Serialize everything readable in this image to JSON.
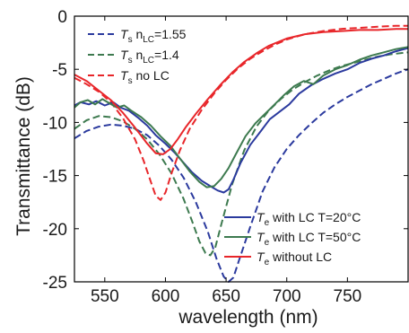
{
  "chart_data": {
    "type": "line",
    "xlabel": "wavelength (nm)",
    "ylabel": "Transmittance (dB)",
    "xlim": [
      525,
      800
    ],
    "ylim": [
      -25,
      0
    ],
    "xticks": [
      550,
      600,
      650,
      700,
      750
    ],
    "yticks": [
      0,
      -5,
      -10,
      -15,
      -20,
      -25
    ],
    "grid": false,
    "legend_placement": [
      "top-left",
      "bottom-right"
    ],
    "series": [
      {
        "name": "T_s n_LC=1.55",
        "legend_group": 0,
        "legend_main": "T",
        "legend_sub": "s",
        "legend_text": " n",
        "legend_text_sub": "LC",
        "legend_tail": "=1.55",
        "color": "#2b3a9e",
        "dash": true,
        "x": [
          525,
          535,
          545,
          555,
          565,
          575,
          585,
          595,
          605,
          615,
          625,
          635,
          642,
          648,
          652,
          656,
          660,
          670,
          680,
          690,
          700,
          710,
          720,
          730,
          740,
          750,
          760,
          770,
          780,
          790,
          800
        ],
        "y": [
          -11.5,
          -10.8,
          -10.4,
          -10.2,
          -10.3,
          -10.6,
          -11.2,
          -12.2,
          -13.5,
          -15.2,
          -17.5,
          -20.3,
          -22.8,
          -24.5,
          -25,
          -24.6,
          -23.2,
          -19.8,
          -16.5,
          -14.2,
          -12.5,
          -11.2,
          -10.1,
          -9.1,
          -8.3,
          -7.6,
          -7,
          -6.4,
          -5.9,
          -5.4,
          -5
        ]
      },
      {
        "name": "T_s n_LC=1.4",
        "legend_group": 0,
        "legend_main": "T",
        "legend_sub": "s",
        "legend_text": " n",
        "legend_text_sub": "LC",
        "legend_tail": "=1.4",
        "color": "#3d7a4f",
        "dash": true,
        "x": [
          525,
          535,
          545,
          555,
          565,
          575,
          585,
          595,
          605,
          615,
          622,
          628,
          633,
          637,
          641,
          646,
          655,
          665,
          675,
          685,
          695,
          705,
          715,
          725,
          735,
          745,
          755,
          765,
          775,
          785,
          800
        ],
        "y": [
          -10.6,
          -9.8,
          -9.4,
          -9.5,
          -9.9,
          -10.6,
          -11.6,
          -13,
          -14.8,
          -17.2,
          -19.3,
          -21.2,
          -22.3,
          -22.5,
          -21.8,
          -19.6,
          -15.8,
          -12.6,
          -10.4,
          -8.9,
          -7.8,
          -6.9,
          -6.2,
          -5.6,
          -5.1,
          -4.7,
          -4.4,
          -4.1,
          -3.8,
          -3.6,
          -3.4
        ]
      },
      {
        "name": "T_s no LC",
        "legend_group": 0,
        "legend_main": "T",
        "legend_sub": "s",
        "legend_text": " no LC",
        "legend_text_sub": "",
        "legend_tail": "",
        "color": "#e8262a",
        "dash": true,
        "x": [
          525,
          535,
          545,
          555,
          565,
          575,
          582,
          588,
          592,
          596,
          600,
          605,
          612,
          620,
          630,
          640,
          650,
          660,
          670,
          680,
          690,
          700,
          715,
          730,
          745,
          760,
          775,
          790,
          800
        ],
        "y": [
          -5.8,
          -6.4,
          -7.1,
          -8.1,
          -9.6,
          -11.6,
          -13.6,
          -15.6,
          -16.9,
          -17.3,
          -16.6,
          -14.8,
          -12.6,
          -10.6,
          -8.8,
          -7.3,
          -6,
          -4.9,
          -4,
          -3.3,
          -2.7,
          -2.2,
          -1.7,
          -1.4,
          -1.2,
          -1.1,
          -1,
          -0.9,
          -0.9
        ]
      },
      {
        "name": "T_e with LC T=20°C",
        "legend_group": 1,
        "legend_main": "T",
        "legend_sub": "e",
        "legend_text": " with LC T=20°C",
        "legend_text_sub": "",
        "legend_tail": "",
        "color": "#2b3a9e",
        "dash": false,
        "x": [
          525,
          530,
          537,
          543,
          550,
          557,
          563,
          570,
          578,
          585,
          592,
          600,
          608,
          615,
          622,
          630,
          637,
          643,
          648,
          652,
          656,
          662,
          670,
          678,
          686,
          694,
          702,
          710,
          720,
          730,
          740,
          750,
          760,
          770,
          780,
          790,
          800
        ],
        "y": [
          -8.4,
          -8.1,
          -8.3,
          -8,
          -8.4,
          -8.1,
          -8.6,
          -8.9,
          -9.6,
          -10.3,
          -11.2,
          -12,
          -12.9,
          -13.8,
          -14.7,
          -15.5,
          -16,
          -16.4,
          -16.6,
          -16.3,
          -15.4,
          -13.8,
          -12.1,
          -10.9,
          -9.7,
          -9,
          -8.3,
          -7.3,
          -6.5,
          -5.9,
          -5.4,
          -5,
          -4.4,
          -4,
          -3.7,
          -3.3,
          -3
        ]
      },
      {
        "name": "T_e with LC T=50°C",
        "legend_group": 1,
        "legend_main": "T",
        "legend_sub": "e",
        "legend_text": " with LC T=50°C",
        "legend_text_sub": "",
        "legend_tail": "",
        "color": "#3d7a4f",
        "dash": false,
        "x": [
          525,
          530,
          536,
          542,
          548,
          554,
          560,
          566,
          572,
          580,
          588,
          596,
          604,
          612,
          620,
          628,
          634,
          640,
          646,
          652,
          658,
          666,
          674,
          682,
          690,
          698,
          706,
          714,
          722,
          730,
          740,
          750,
          760,
          770,
          780,
          790,
          800
        ],
        "y": [
          -8.6,
          -8.1,
          -7.9,
          -8.3,
          -7.8,
          -8.2,
          -8.6,
          -8.4,
          -8.9,
          -9.5,
          -10.3,
          -11.3,
          -12.2,
          -13.4,
          -14.6,
          -15.6,
          -16.1,
          -16,
          -15.3,
          -14.3,
          -13,
          -11.3,
          -10.1,
          -9.2,
          -8.3,
          -7.4,
          -6.6,
          -6.1,
          -6.4,
          -5.6,
          -5,
          -4.6,
          -4.1,
          -3.7,
          -3.4,
          -3.1,
          -2.9
        ]
      },
      {
        "name": "T_e without LC",
        "legend_group": 1,
        "legend_main": "T",
        "legend_sub": "e",
        "legend_text": " without LC",
        "legend_text_sub": "",
        "legend_tail": "",
        "color": "#e8262a",
        "dash": false,
        "x": [
          525,
          535,
          545,
          555,
          565,
          575,
          585,
          592,
          598,
          604,
          610,
          617,
          625,
          635,
          645,
          655,
          665,
          675,
          685,
          700,
          715,
          730,
          745,
          760,
          775,
          790,
          800
        ],
        "y": [
          -5.5,
          -6.1,
          -7,
          -7.9,
          -9.1,
          -10.5,
          -12,
          -12.9,
          -13,
          -12.5,
          -11.6,
          -10.4,
          -9.2,
          -7.8,
          -6.5,
          -5.3,
          -4.3,
          -3.5,
          -2.8,
          -2.1,
          -1.7,
          -1.5,
          -1.4,
          -1.3,
          -1.3,
          -1.2,
          -1.2
        ]
      }
    ]
  }
}
